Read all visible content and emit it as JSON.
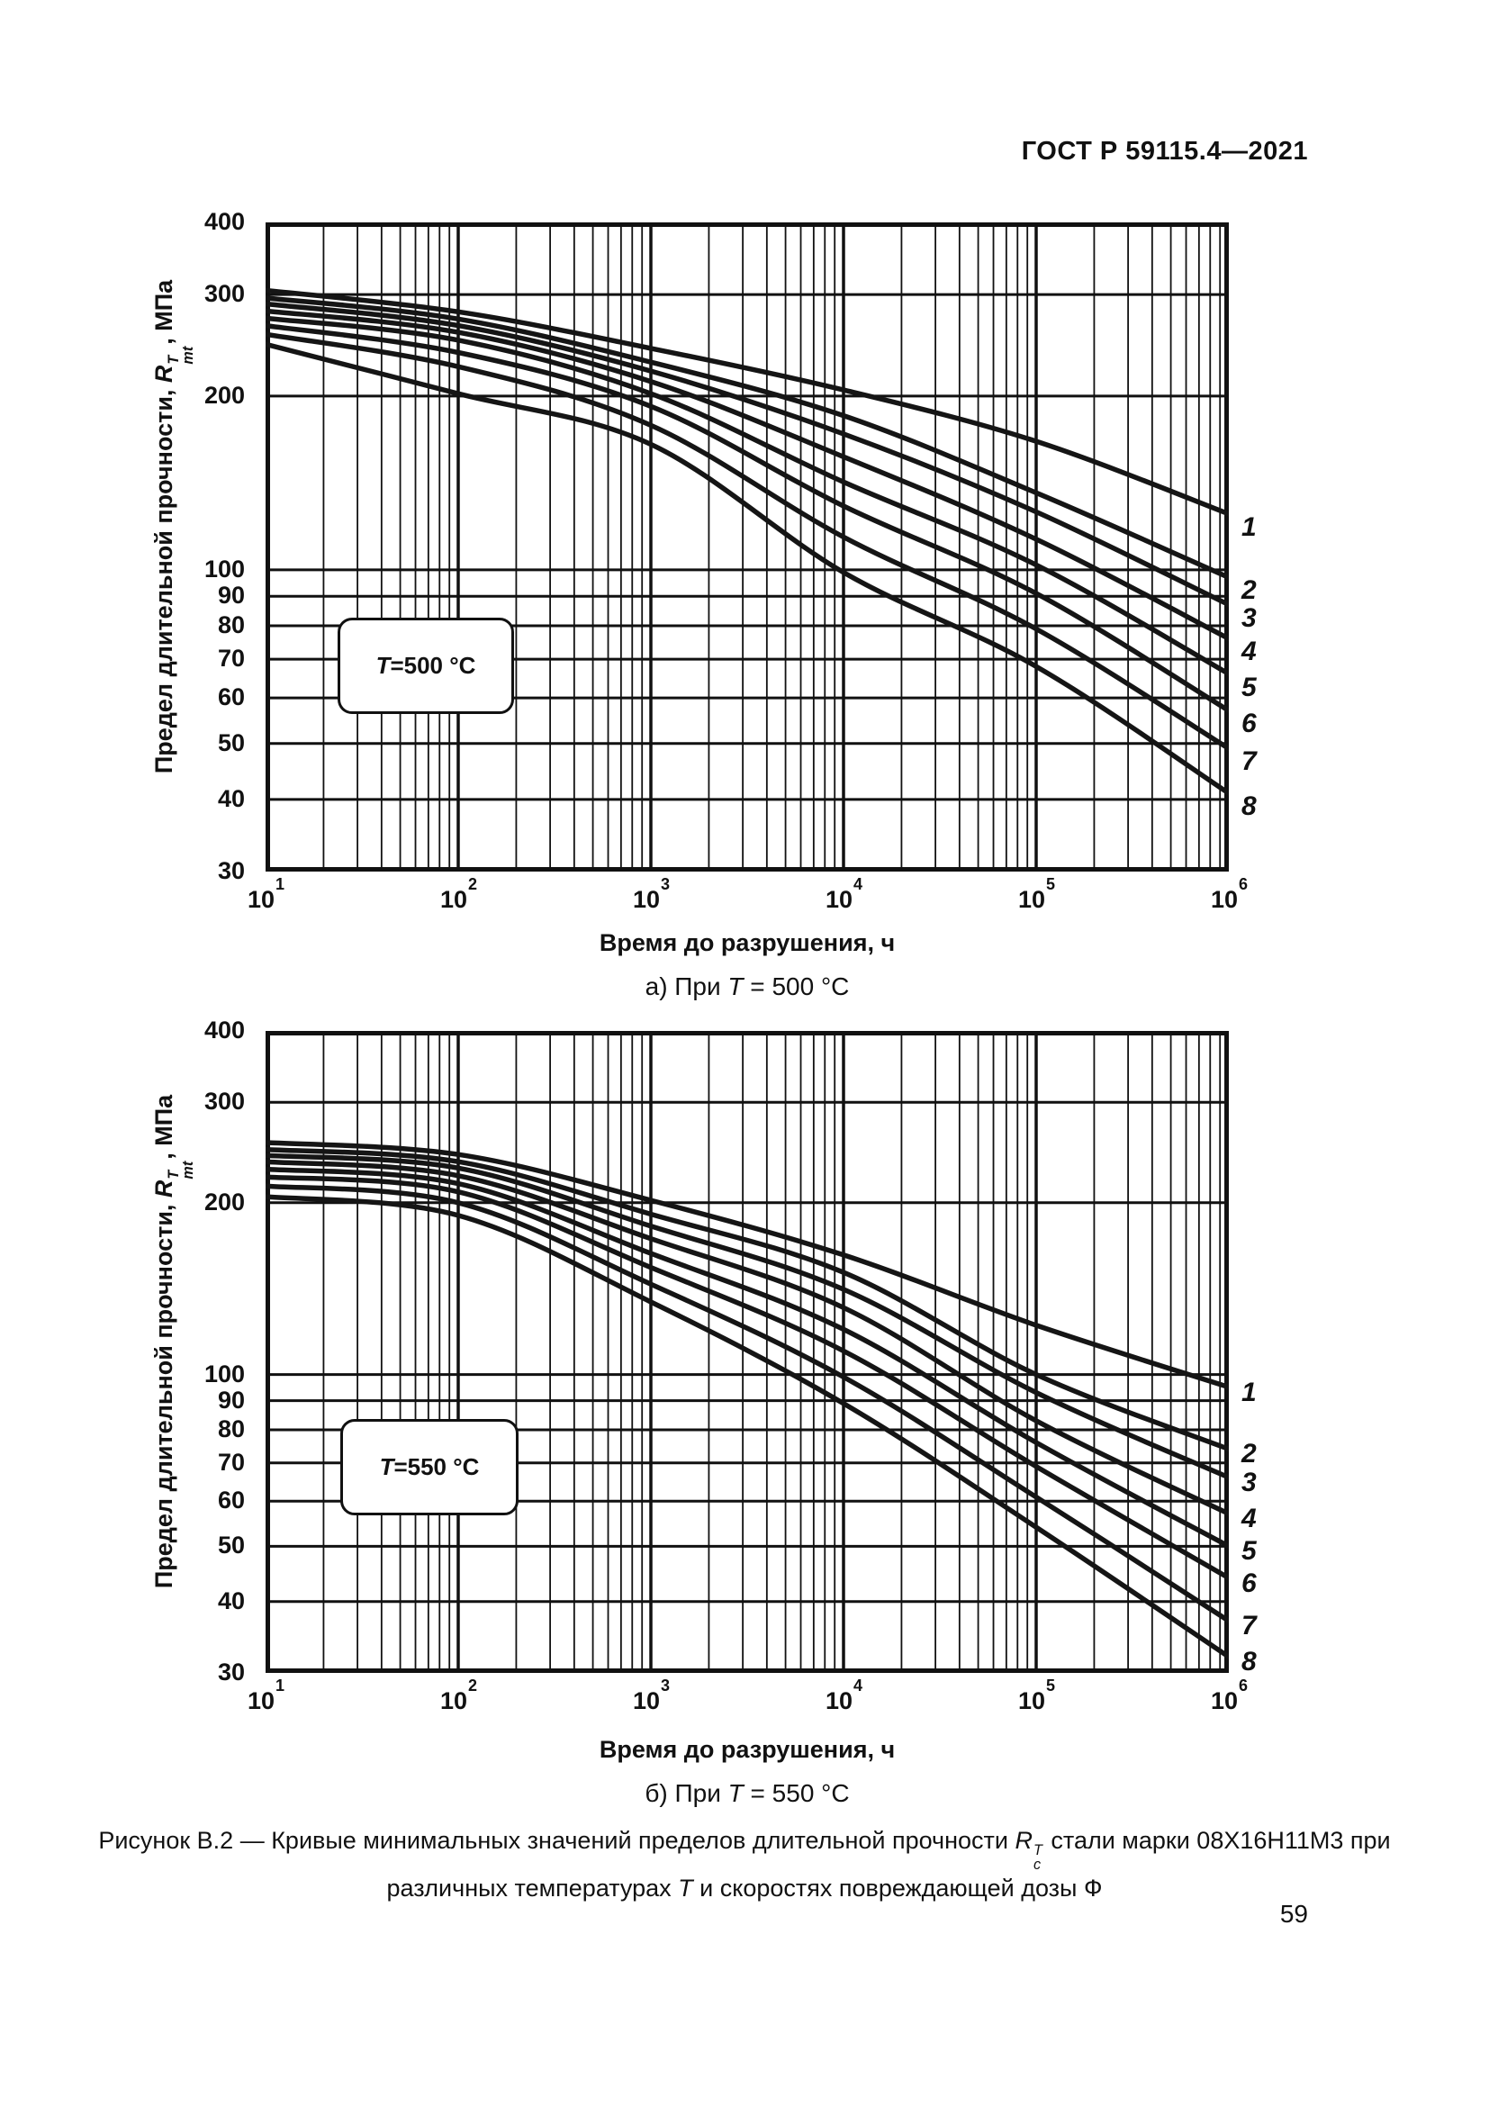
{
  "header": {
    "doc_number": "ГОСТ Р 59115.4—2021"
  },
  "page_number": "59",
  "axis": {
    "ylabel_prefix": "Предел длительной прочности, ",
    "ylabel_symbol": "R",
    "ylabel_sup": "T",
    "ylabel_sub": "mt",
    "ylabel_suffix": ", МПа",
    "xlabel": "Время до разрушения, ч"
  },
  "charts": [
    {
      "annotation_t": "T",
      "annotation_rest": "=500 °C",
      "caption_prefix": "а) При ",
      "caption_t": "T",
      "caption_suffix": " = 500 °C"
    },
    {
      "annotation_t": "T",
      "annotation_rest": "=550 °C",
      "caption_prefix": "б) При ",
      "caption_t": "T",
      "caption_suffix": " = 550 °C"
    }
  ],
  "figure_caption": {
    "line1_before": "Рисунок В.2 — Кривые минимальных значений пределов длительной прочности ",
    "symbol": "R",
    "symbol_sup": "T",
    "symbol_sub": "c",
    "line1_after": " стали марки 08Х16Н11М3 при",
    "line2_before": "различных температурах ",
    "line2_t": "Т",
    "line2_after": " и скоростях повреждающей дозы Ф"
  },
  "chart_data": [
    {
      "type": "line",
      "title": "T = 500 °C",
      "xlabel": "Время до разрушения, ч",
      "ylabel": "Предел длительной прочности, R_mt^T, МПа",
      "xscale": "log",
      "yscale": "log",
      "xlim": [
        10,
        1000000
      ],
      "ylim": [
        30,
        400
      ],
      "x": [
        10,
        100,
        1000,
        10000,
        100000,
        1000000
      ],
      "x_tick_exponents": [
        1,
        2,
        3,
        4,
        5,
        6
      ],
      "y_ticks": [
        400,
        300,
        200,
        100,
        90,
        80,
        70,
        60,
        50,
        40,
        30
      ],
      "grid_y_values": [
        40,
        50,
        60,
        70,
        80,
        90,
        100,
        200,
        300
      ],
      "grid": "log-log full grid",
      "legend_position": "right edge, curve numbers",
      "series": [
        {
          "name": "1",
          "values": [
            305,
            280,
            242,
            205,
            167,
            125
          ]
        },
        {
          "name": "2",
          "values": [
            296,
            272,
            229,
            185,
            136,
            97
          ]
        },
        {
          "name": "3",
          "values": [
            289,
            265,
            221,
            172,
            126,
            87
          ]
        },
        {
          "name": "4",
          "values": [
            281,
            258,
            212,
            157,
            113,
            76
          ]
        },
        {
          "name": "5",
          "values": [
            273,
            250,
            202,
            142,
            102,
            66
          ]
        },
        {
          "name": "6",
          "values": [
            265,
            238,
            192,
            129,
            91,
            57
          ]
        },
        {
          "name": "7",
          "values": [
            256,
            225,
            178,
            114,
            79,
            49
          ]
        },
        {
          "name": "8",
          "values": [
            246,
            202,
            165,
            99,
            68,
            41
          ]
        }
      ]
    },
    {
      "type": "line",
      "title": "T = 550 °C",
      "xlabel": "Время до разрушения, ч",
      "ylabel": "Предел длительной прочности, R_mt^T, МПа",
      "xscale": "log",
      "yscale": "log",
      "xlim": [
        10,
        1000000
      ],
      "ylim": [
        30,
        400
      ],
      "x": [
        10,
        100,
        1000,
        10000,
        100000,
        1000000
      ],
      "x_tick_exponents": [
        1,
        2,
        3,
        4,
        5,
        6
      ],
      "y_ticks": [
        400,
        300,
        200,
        100,
        90,
        80,
        70,
        60,
        50,
        40,
        30
      ],
      "grid_y_values": [
        40,
        50,
        60,
        70,
        80,
        90,
        100,
        200,
        300
      ],
      "grid": "log-log full grid",
      "legend_position": "right edge, curve numbers",
      "series": [
        {
          "name": "1",
          "values": [
            255,
            243,
            202,
            162,
            122,
            95
          ]
        },
        {
          "name": "2",
          "values": [
            248,
            236,
            191,
            151,
            100,
            74
          ]
        },
        {
          "name": "3",
          "values": [
            242,
            230,
            182,
            141,
            93,
            66
          ]
        },
        {
          "name": "4",
          "values": [
            236,
            223,
            173,
            131,
            83,
            57
          ]
        },
        {
          "name": "5",
          "values": [
            229,
            216,
            163,
            120,
            76,
            50
          ]
        },
        {
          "name": "6",
          "values": [
            222,
            209,
            154,
            110,
            69,
            44
          ]
        },
        {
          "name": "7",
          "values": [
            214,
            200,
            144,
            99,
            61,
            37
          ]
        },
        {
          "name": "8",
          "values": [
            205,
            190,
            134,
            89,
            54,
            32
          ]
        }
      ]
    }
  ]
}
